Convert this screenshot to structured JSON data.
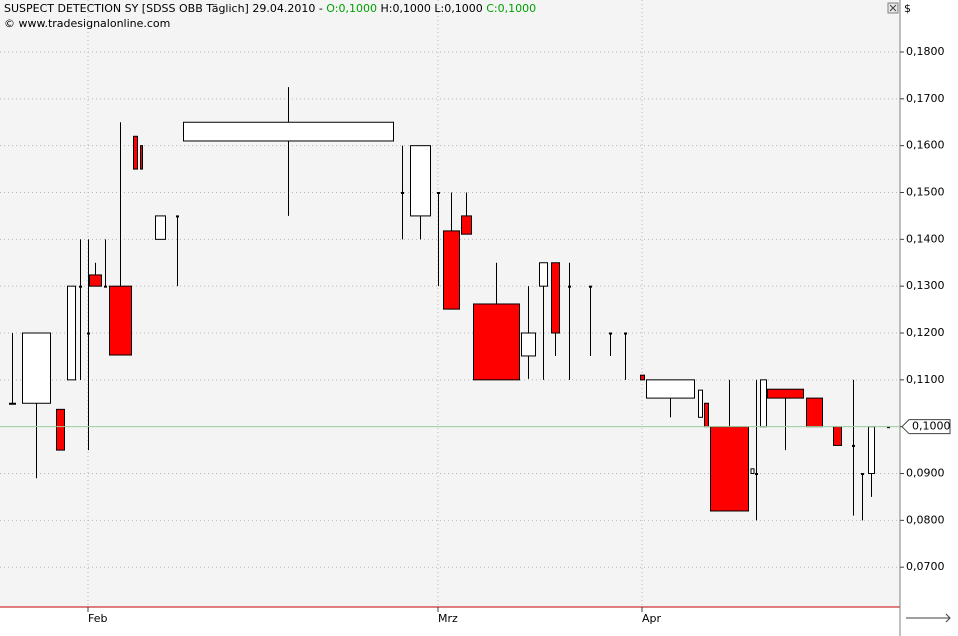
{
  "chart_data": {
    "type": "candlestick",
    "header": {
      "title": "SUSPECT DETECTION SY [SDSS OBB  Täglich] 29.04.2010 - ",
      "open": "O:0,1000",
      "high_low": " H:0,1000 L:0,1000 ",
      "close": "C:0,1000",
      "source": "© www.tradesignalonline.com"
    },
    "y_unit": "$",
    "categories": [
      null,
      null,
      null,
      null,
      null,
      "Feb",
      null,
      null,
      null,
      null,
      null,
      null,
      null,
      null,
      null,
      null,
      "Mrz",
      null,
      null,
      null,
      null,
      null,
      null,
      null,
      null,
      null,
      null,
      "Apr",
      null,
      null,
      null,
      null,
      null,
      null,
      null,
      null,
      null,
      null,
      null,
      null,
      null,
      null
    ],
    "open": [
      0.105,
      0.105,
      0.1037,
      0.11,
      0.13,
      0.12,
      0.1324,
      0.13,
      0.13,
      0.162,
      0.16,
      0.14,
      0.145,
      0.161,
      0.15,
      0.145,
      0.15,
      0.1418,
      0.145,
      0.1262,
      0.1151,
      0.13,
      0.135,
      0.13,
      0.13,
      0.12,
      0.12,
      0.111,
      0.1061,
      0.102,
      0.105,
      0.1,
      0.09,
      0.09,
      0.1,
      0.108,
      0.1061,
      0.1,
      0.096,
      0.09,
      0.09,
      0.1
    ],
    "high": [
      0.12,
      0.12,
      0.1037,
      0.13,
      0.14,
      0.14,
      0.135,
      0.14,
      0.165,
      0.162,
      0.16,
      0.145,
      0.145,
      0.1725,
      0.16,
      0.16,
      0.15,
      0.15,
      0.15,
      0.135,
      0.13,
      0.135,
      0.135,
      0.135,
      0.13,
      0.12,
      0.12,
      0.111,
      0.11,
      0.1078,
      0.105,
      0.11,
      0.091,
      0.11,
      0.11,
      0.108,
      0.1061,
      0.1,
      0.11,
      0.09,
      0.1,
      0.1
    ],
    "low": [
      0.105,
      0.089,
      0.095,
      0.11,
      0.11,
      0.095,
      0.13,
      0.13,
      0.1153,
      0.155,
      0.155,
      0.14,
      0.13,
      0.145,
      0.14,
      0.14,
      0.13,
      0.1251,
      0.1411,
      0.11,
      0.1102,
      0.11,
      0.1151,
      0.11,
      0.1151,
      0.1151,
      0.11,
      0.11,
      0.102,
      0.102,
      0.1,
      0.082,
      0.09,
      0.08,
      0.1,
      0.095,
      0.1,
      0.096,
      0.081,
      0.08,
      0.085,
      0.1
    ],
    "close": [
      0.105,
      0.12,
      0.095,
      0.13,
      0.13,
      0.12,
      0.13,
      0.13,
      0.1153,
      0.155,
      0.155,
      0.145,
      0.145,
      0.165,
      0.15,
      0.16,
      0.15,
      0.1251,
      0.1411,
      0.11,
      0.12,
      0.135,
      0.12,
      0.13,
      0.13,
      0.12,
      0.12,
      0.11,
      0.11,
      0.1078,
      0.1,
      0.082,
      0.091,
      0.09,
      0.11,
      0.1061,
      0.1,
      0.096,
      0.096,
      0.09,
      0.1,
      0.1
    ],
    "up_color": "#ffffff",
    "down_color": "#ff0000",
    "ylim": [
      0.0615,
      0.1911
    ],
    "yticks": [
      {
        "value": 0.07,
        "label": "0,0700"
      },
      {
        "value": 0.08,
        "label": "0,0800"
      },
      {
        "value": 0.09,
        "label": "0,0900"
      },
      {
        "value": 0.1,
        "label": "0,1000"
      },
      {
        "value": 0.11,
        "label": "0,1100"
      },
      {
        "value": 0.12,
        "label": "0,1200"
      },
      {
        "value": 0.13,
        "label": "0,1300"
      },
      {
        "value": 0.14,
        "label": "0,1400"
      },
      {
        "value": 0.15,
        "label": "0,1500"
      },
      {
        "value": 0.16,
        "label": "0,1600"
      },
      {
        "value": 0.17,
        "label": "0,1700"
      },
      {
        "value": 0.18,
        "label": "0,1800"
      }
    ],
    "last_price": {
      "value": 0.1,
      "label": "0,1000"
    },
    "grid": true
  }
}
